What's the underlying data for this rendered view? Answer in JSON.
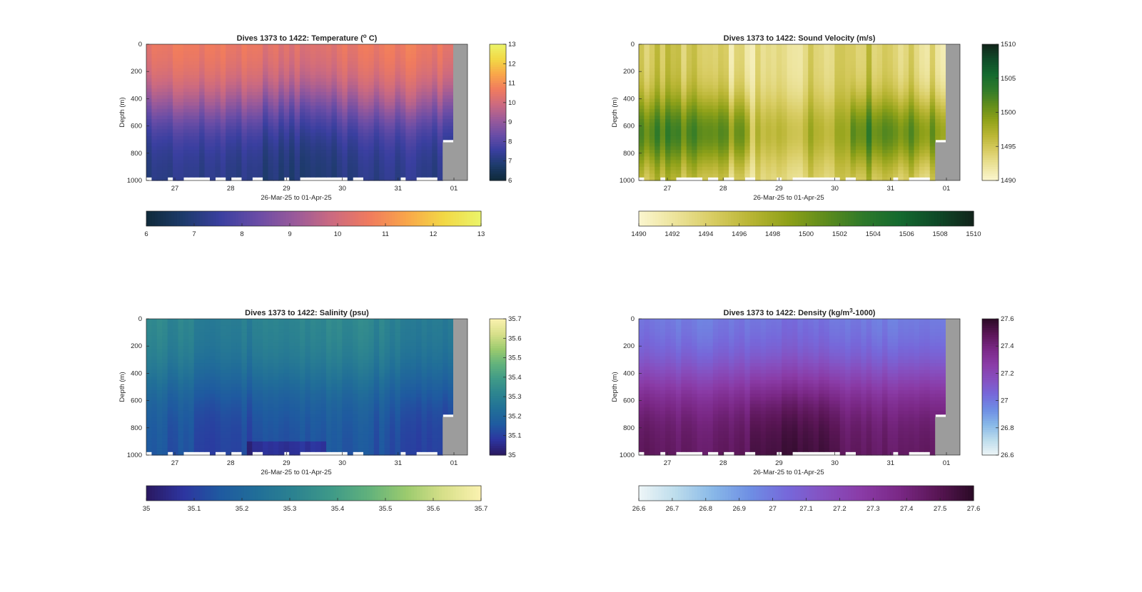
{
  "chart_data": [
    {
      "type": "heatmap",
      "title": "Dives 1373 to 1422: Temperature (°C)",
      "title_parts": [
        "Dives 1373 to 1422: Temperature (",
        "o",
        " C)"
      ],
      "title_style": "sup",
      "ylabel": "Depth (m)",
      "xlabel": "26-Mar-25 to 01-Apr-25",
      "x_ticks": [
        "27",
        "28",
        "29",
        "30",
        "31",
        "01"
      ],
      "y_ticks": [
        "0",
        "200",
        "400",
        "600",
        "800",
        "1000"
      ],
      "ylim": [
        0,
        1000
      ],
      "y_reversed": true,
      "colorbar": {
        "min": 6,
        "max": 13,
        "ticks": [
          "6",
          "7",
          "8",
          "9",
          "10",
          "11",
          "12",
          "13"
        ],
        "ticks_h": [
          "6",
          "7",
          "8",
          "9",
          "10",
          "11",
          "12",
          "13"
        ]
      },
      "colormap": [
        "#0f2a3a",
        "#1d3b6b",
        "#3a3fa0",
        "#6a4da6",
        "#9a5a9a",
        "#cc6a80",
        "#f07b5e",
        "#f9a64a",
        "#f2d845",
        "#ebf46a"
      ],
      "surface_value": 10.6,
      "deep_value": 7.0,
      "thermocline_depth": 450
    },
    {
      "type": "heatmap",
      "title": "Dives 1373 to 1422: Sound Velocity (m/s)",
      "title_parts": [
        "Dives 1373 to 1422: Sound Velocity (m/s)"
      ],
      "title_style": "plain",
      "ylabel": "Depth (m)",
      "xlabel": "26-Mar-25 to 01-Apr-25",
      "x_ticks": [
        "27",
        "28",
        "29",
        "30",
        "31",
        "01"
      ],
      "y_ticks": [
        "0",
        "200",
        "400",
        "600",
        "800",
        "1000"
      ],
      "ylim": [
        0,
        1000
      ],
      "y_reversed": true,
      "colorbar": {
        "min": 1490,
        "max": 1510,
        "ticks": [
          "1490",
          "1495",
          "1500",
          "1505",
          "1510"
        ],
        "ticks_h": [
          "1490",
          "1492",
          "1494",
          "1496",
          "1498",
          "1500",
          "1502",
          "1504",
          "1506",
          "1508",
          "1510"
        ]
      },
      "colormap": [
        "#fbf6cf",
        "#ece39a",
        "#d8cc62",
        "#b9b534",
        "#8fa119",
        "#5f8c1c",
        "#2f7a2a",
        "#146a2f",
        "#0f4a28",
        "#11231a"
      ],
      "surface_value": 1493,
      "deep_value": 1494,
      "thermocline_depth": 450
    },
    {
      "type": "heatmap",
      "title": "Dives 1373 to 1422: Salinity (psu)",
      "title_parts": [
        "Dives 1373 to 1422: Salinity (psu)"
      ],
      "title_style": "plain",
      "ylabel": "Depth (m)",
      "xlabel": "26-Mar-25 to 01-Apr-25",
      "x_ticks": [
        "27",
        "28",
        "29",
        "30",
        "31",
        "01"
      ],
      "y_ticks": [
        "0",
        "200",
        "400",
        "600",
        "800",
        "1000"
      ],
      "ylim": [
        0,
        1000
      ],
      "y_reversed": true,
      "colorbar": {
        "min": 35,
        "max": 35.7,
        "ticks": [
          "35",
          "35.1",
          "35.2",
          "35.3",
          "35.4",
          "35.5",
          "35.6",
          "35.7"
        ],
        "ticks_h": [
          "35",
          "35.1",
          "35.2",
          "35.3",
          "35.4",
          "35.5",
          "35.6",
          "35.7"
        ]
      },
      "colormap": [
        "#2a1860",
        "#2d35a0",
        "#1f5aa0",
        "#216f98",
        "#2c8390",
        "#3f9a88",
        "#62b27c",
        "#9ccb6e",
        "#d8e08a",
        "#fbf2b0"
      ],
      "surface_value": 35.3,
      "deep_value": 35.12,
      "thermocline_depth": 450
    },
    {
      "type": "heatmap",
      "title": "Dives 1373 to 1422: Density (kg/m³-1000)",
      "title_parts": [
        "Dives 1373 to 1422: Density (kg/m",
        "3",
        "-1000)"
      ],
      "title_style": "sup",
      "ylabel": "Depth (m)",
      "xlabel": "26-Mar-25 to 01-Apr-25",
      "x_ticks": [
        "27",
        "28",
        "29",
        "30",
        "31",
        "01"
      ],
      "y_ticks": [
        "0",
        "200",
        "400",
        "600",
        "800",
        "1000"
      ],
      "ylim": [
        0,
        1000
      ],
      "y_reversed": true,
      "colorbar": {
        "min": 26.6,
        "max": 27.6,
        "ticks": [
          "26.6",
          "26.8",
          "27",
          "27.2",
          "27.4",
          "27.6"
        ],
        "ticks_h": [
          "26.6",
          "26.7",
          "26.8",
          "26.9",
          "27",
          "27.1",
          "27.2",
          "27.3",
          "27.4",
          "27.5",
          "27.6"
        ]
      },
      "colormap": [
        "#eef6f7",
        "#bcdcec",
        "#88b8e8",
        "#6e8ee4",
        "#7668da",
        "#8650c0",
        "#8a3ba6",
        "#7a2886",
        "#5a1656",
        "#2a0a25"
      ],
      "surface_value": 27.0,
      "deep_value": 27.45,
      "thermocline_depth": 450
    }
  ]
}
